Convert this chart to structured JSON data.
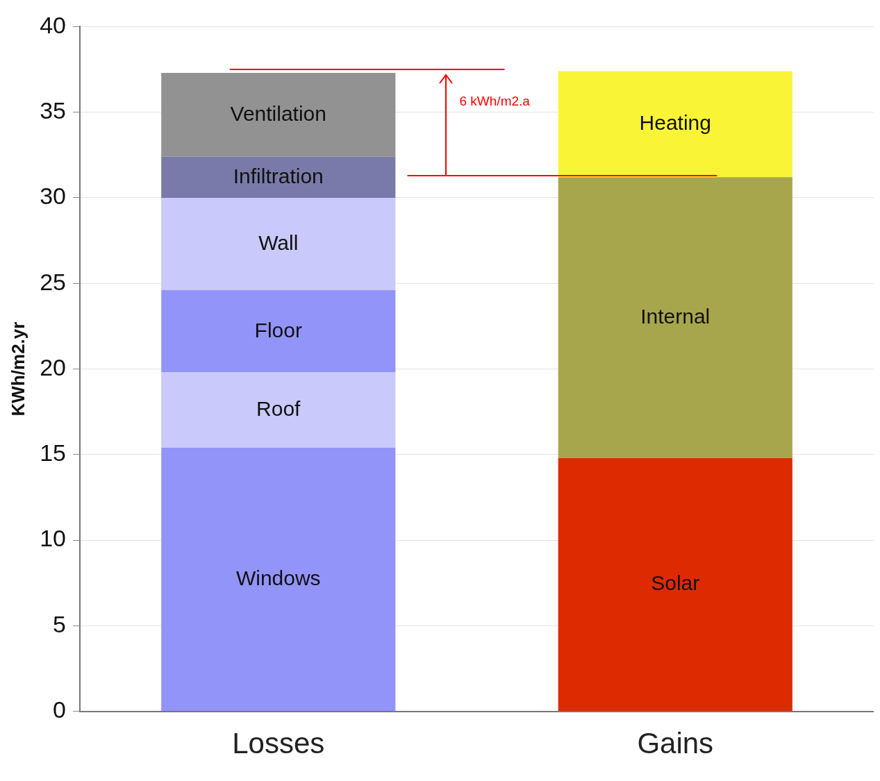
{
  "chart_data": {
    "type": "bar",
    "stacked": true,
    "ylabel": "KWh/m2.yr",
    "categories": [
      "Losses",
      "Gains"
    ],
    "series": [
      {
        "name": "Windows",
        "color": "#9294f9",
        "values": [
          15.4,
          null
        ]
      },
      {
        "name": "Roof",
        "color": "#c9c9fb",
        "values": [
          4.4,
          null
        ]
      },
      {
        "name": "Floor",
        "color": "#9294f9",
        "values": [
          4.8,
          null
        ]
      },
      {
        "name": "Wall",
        "color": "#c9c9fb",
        "values": [
          5.4,
          null
        ]
      },
      {
        "name": "Infiltration",
        "color": "#7a7aaa",
        "values": [
          2.4,
          null
        ]
      },
      {
        "name": "Ventilation",
        "color": "#929292",
        "values": [
          4.9,
          null
        ]
      },
      {
        "name": "Solar",
        "color": "#dd2a00",
        "values": [
          null,
          14.8
        ]
      },
      {
        "name": "Internal",
        "color": "#a8a64c",
        "values": [
          null,
          16.4
        ]
      },
      {
        "name": "Heating",
        "color": "#f9f536",
        "values": [
          null,
          6.2
        ]
      }
    ],
    "ylim": [
      0,
      40
    ],
    "yticks": [
      0,
      5,
      10,
      15,
      20,
      25,
      30,
      35,
      40
    ],
    "grid": "y",
    "legend": false,
    "ref_lines": [
      {
        "axis": "y",
        "value": 37.5,
        "color": "#ff0000"
      },
      {
        "axis": "y",
        "value": 31.3,
        "color": "#ff0000"
      }
    ],
    "annotations": [
      "6 kWh/m2.a"
    ]
  }
}
